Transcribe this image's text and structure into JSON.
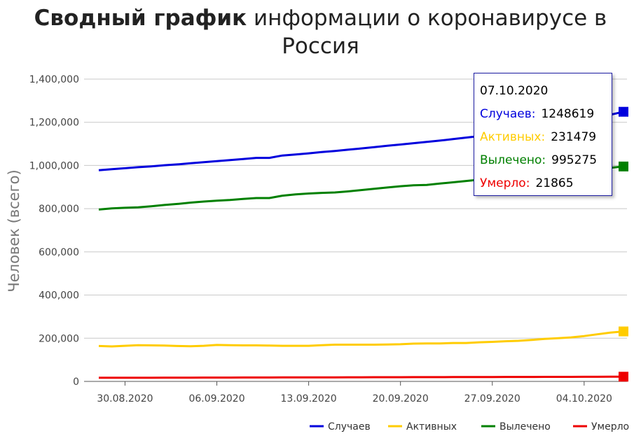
{
  "title": {
    "bold": "Сводный график",
    "rest": " информации о коронавирусе в Россия"
  },
  "chart_data": {
    "type": "line",
    "title": "Сводный график информации о коронавирусе в Россия",
    "ylabel": "Человек (всего)",
    "xlabel": "",
    "ylim": [
      0,
      1400000
    ],
    "yticks": [
      0,
      200000,
      400000,
      600000,
      800000,
      1000000,
      1200000,
      1400000
    ],
    "ytick_labels": [
      "0",
      "200,000",
      "400,000",
      "600,000",
      "800,000",
      "1,000,000",
      "1,200,000",
      "1,400,000"
    ],
    "xtick_labels": [
      "30.08.2020",
      "06.09.2020",
      "13.09.2020",
      "20.09.2020",
      "27.09.2020",
      "04.10.2020"
    ],
    "xtick_indices": [
      2,
      9,
      16,
      23,
      30,
      37
    ],
    "x": [
      "28.08.2020",
      "29.08.2020",
      "30.08.2020",
      "31.08.2020",
      "01.09.2020",
      "02.09.2020",
      "03.09.2020",
      "04.09.2020",
      "05.09.2020",
      "06.09.2020",
      "07.09.2020",
      "08.09.2020",
      "09.09.2020",
      "10.09.2020",
      "11.09.2020",
      "12.09.2020",
      "13.09.2020",
      "14.09.2020",
      "15.09.2020",
      "16.09.2020",
      "17.09.2020",
      "18.09.2020",
      "19.09.2020",
      "20.09.2020",
      "21.09.2020",
      "22.09.2020",
      "23.09.2020",
      "24.09.2020",
      "25.09.2020",
      "26.09.2020",
      "27.09.2020",
      "28.09.2020",
      "29.09.2020",
      "30.09.2020",
      "01.10.2020",
      "02.10.2020",
      "03.10.2020",
      "04.10.2020",
      "05.10.2020",
      "06.10.2020",
      "07.10.2020"
    ],
    "grid": true,
    "legend_position": "bottom-right",
    "series": [
      {
        "name": "Случаев",
        "color": "#0000dd",
        "values": [
          978000,
          983000,
          987000,
          992000,
          996000,
          1001000,
          1005000,
          1010000,
          1015000,
          1020000,
          1025000,
          1030000,
          1035000,
          1035000,
          1046000,
          1051000,
          1056000,
          1062000,
          1067000,
          1073000,
          1079000,
          1085000,
          1091000,
          1097000,
          1103000,
          1109000,
          1115000,
          1122000,
          1129000,
          1136000,
          1143000,
          1151000,
          1159000,
          1167000,
          1176000,
          1186000,
          1196000,
          1207000,
          1221000,
          1235000,
          1248619
        ]
      },
      {
        "name": "Активных",
        "color": "#ffcc00",
        "values": [
          164000,
          162000,
          165000,
          168000,
          167000,
          166000,
          164000,
          163000,
          165000,
          169000,
          168000,
          167000,
          167000,
          166000,
          165000,
          165000,
          165000,
          168000,
          170000,
          170000,
          170000,
          170000,
          171000,
          172000,
          175000,
          176000,
          176000,
          178000,
          178000,
          181000,
          183000,
          186000,
          188000,
          192000,
          197000,
          200000,
          204000,
          210000,
          218000,
          226000,
          231479
        ]
      },
      {
        "name": "Вылечено",
        "color": "#008000",
        "values": [
          796000,
          801000,
          804000,
          806000,
          811000,
          817000,
          822000,
          828000,
          833000,
          837000,
          840000,
          845000,
          849000,
          849000,
          860000,
          866000,
          870000,
          873000,
          875000,
          880000,
          886000,
          892000,
          898000,
          904000,
          908000,
          910000,
          916000,
          922000,
          928000,
          934000,
          939000,
          945000,
          950000,
          956000,
          960000,
          965000,
          970000,
          975000,
          982000,
          989000,
          995275
        ]
      },
      {
        "name": "Умерло",
        "color": "#ee0000",
        "values": [
          16800,
          16900,
          17000,
          17100,
          17200,
          17400,
          17500,
          17600,
          17700,
          17800,
          17900,
          18000,
          18200,
          18300,
          18400,
          18600,
          18700,
          18800,
          18900,
          19100,
          19200,
          19300,
          19500,
          19600,
          19700,
          19800,
          19900,
          20100,
          20200,
          20300,
          20400,
          20600,
          20700,
          20800,
          21000,
          21100,
          21200,
          21400,
          21500,
          21700,
          21865
        ]
      }
    ]
  },
  "tooltip": {
    "date": "07.10.2020",
    "rows": [
      {
        "label": "Случаев:",
        "value": "1248619",
        "color": "#0000dd"
      },
      {
        "label": "Активных:",
        "value": "231479",
        "color": "#ffcc00"
      },
      {
        "label": "Вылечено:",
        "value": "995275",
        "color": "#008000"
      },
      {
        "label": "Умерло:",
        "value": "21865",
        "color": "#ee0000"
      }
    ]
  }
}
